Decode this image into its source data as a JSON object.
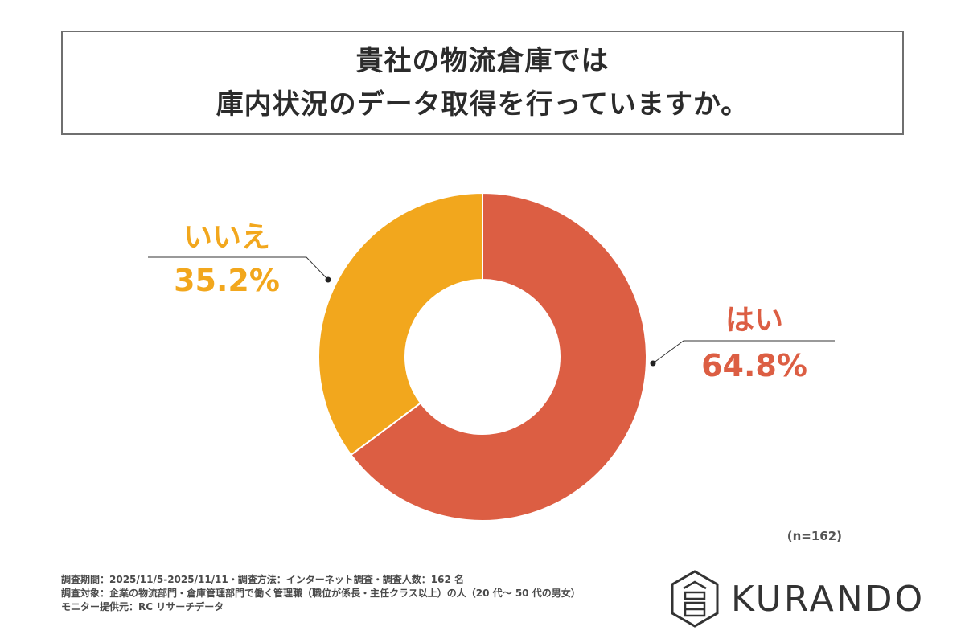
{
  "header": {
    "title_line1": "貴社の物流倉庫では",
    "title_line2": "庫内状況のデータ取得を行っていますか。"
  },
  "chart_data": {
    "type": "pie",
    "donut": true,
    "title": "貴社の物流倉庫では 庫内状況のデータ取得を行っていますか。",
    "slices": [
      {
        "label": "はい",
        "value": 64.8,
        "value_label": "64.8%",
        "color": "#dc5e43"
      },
      {
        "label": "いいえ",
        "value": 35.2,
        "value_label": "35.2%",
        "color": "#f2a71d"
      }
    ],
    "sample_size": "(n=162)"
  },
  "footnotes": {
    "line1": "調査期間：2025/11/5-2025/11/11・調査方法：インターネット調査・調査人数：162 名",
    "line2": "調査対象：企業の物流部門・倉庫管理部門で働く管理職（職位が係長・主任クラス以上）の人（20 代〜 50 代の男女）",
    "line3": "モニター提供元：RC リサーチデータ"
  },
  "logo": {
    "name": "KURANDO",
    "icon": "kurando-hexagon-logo-icon"
  }
}
